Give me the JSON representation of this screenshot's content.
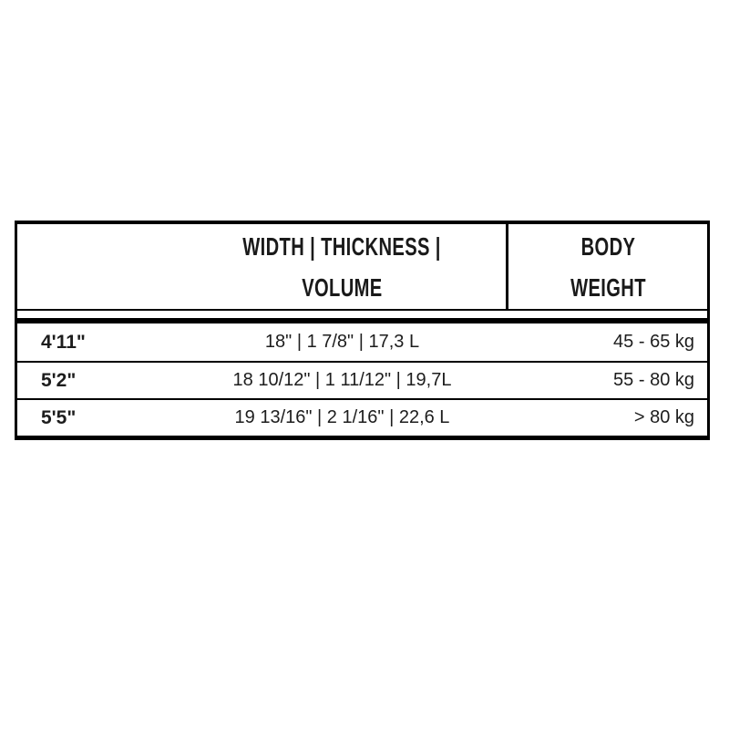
{
  "chart_data": {
    "type": "table",
    "columns": [
      "",
      "WIDTH | THICKNESS | VOLUME",
      "BODY WEIGHT"
    ],
    "header": {
      "size_label": "",
      "specs_lines": [
        "WIDTH | THICKNESS |",
        "VOLUME"
      ],
      "weight_lines": [
        "BODY",
        "WEIGHT"
      ]
    },
    "rows": [
      {
        "size": "4'11\"",
        "specs": "18\" | 1 7/8\" | 17,3 L",
        "weight": "45 - 65 kg"
      },
      {
        "size": "5'2\"",
        "specs": "18 10/12\" | 1 11/12\" | 19,7L",
        "weight": "55 - 80 kg"
      },
      {
        "size": "5'5\"",
        "specs": "19 13/16\" | 2 1/16\" | 22,6 L",
        "weight": "> 80 kg"
      }
    ],
    "layout": {
      "grid": "off",
      "header_divider": "vertical line between specs and body-weight columns (header only)",
      "thick_rule_below_header": true
    },
    "colors": {
      "border": "#000000",
      "text": "#1d1d1d",
      "background": "#ffffff"
    }
  }
}
